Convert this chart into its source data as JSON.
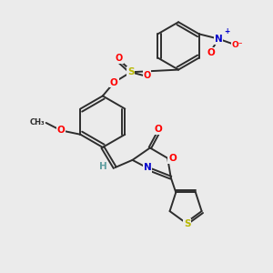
{
  "background_color": "#ebebeb",
  "bond_color": "#2d2d2d",
  "bond_width": 1.4,
  "atom_colors": {
    "O": "#ff0000",
    "N": "#0000cc",
    "S": "#b8b800",
    "H": "#5f9ea0",
    "C": "#2d2d2d"
  },
  "font_size": 7.5,
  "dbo": 0.055
}
